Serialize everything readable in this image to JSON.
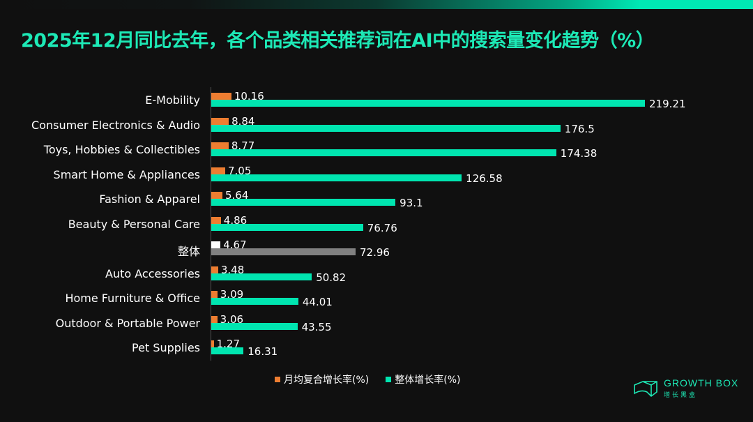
{
  "title": "2025年12月同比去年，各个品类相关推荐词在AI中的搜索量变化趋势（%）",
  "colors": {
    "monthly": "#ed7d31",
    "overall": "#00e5b0",
    "highlight_monthly": "#ffffff",
    "highlight_overall": "#808080",
    "accent": "#1de9b6"
  },
  "logo": {
    "name": "GROWTH BOX",
    "subtitle": "增长黑盒",
    "icon": "box-icon"
  },
  "chart_data": {
    "type": "bar",
    "orientation": "horizontal",
    "title": "2025年12月同比去年，各个品类相关推荐词在AI中的搜索量变化趋势（%）",
    "categories": [
      "E-Mobility",
      "Consumer Electronics & Audio",
      "Toys, Hobbies & Collectibles",
      "Smart Home & Appliances",
      "Fashion & Apparel",
      "Beauty & Personal Care",
      "整体",
      "Auto Accessories",
      "Home Furniture & Office",
      "Outdoor & Portable Power",
      "Pet Supplies"
    ],
    "highlight_category": "整体",
    "series": [
      {
        "name": "月均复合增长率(%)",
        "values": [
          10.16,
          8.84,
          8.77,
          7.05,
          5.64,
          4.86,
          4.67,
          3.48,
          3.09,
          3.06,
          1.27
        ]
      },
      {
        "name": "整体增长率(%)",
        "values": [
          219.21,
          176.5,
          174.38,
          126.58,
          93.1,
          76.76,
          72.96,
          50.82,
          44.01,
          43.55,
          16.31
        ]
      }
    ],
    "data_labels": {
      "monthly": [
        "10.16",
        "8.84",
        "8.77",
        "7.05",
        "5.64",
        "4.86",
        "4.67",
        "3.48",
        "3.09",
        "3.06",
        "1.27"
      ],
      "overall": [
        "219.21",
        "176.5",
        "174.38",
        "126.58",
        "93.1",
        "76.76",
        "72.96",
        "50.82",
        "44.01",
        "43.55",
        "16.31"
      ]
    },
    "xlim": [
      0,
      220
    ],
    "grid": false,
    "legend_position": "bottom"
  }
}
